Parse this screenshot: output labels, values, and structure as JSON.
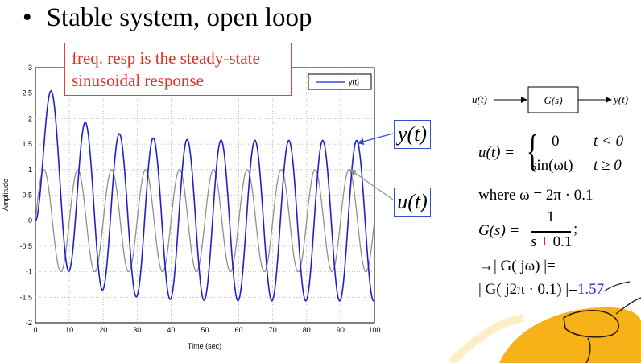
{
  "slide": {
    "bullet": "•",
    "title": "Stable system, open loop",
    "callout_line1": "freq. resp is the steady-state",
    "callout_line2": "sinusoidal response"
  },
  "chart_data": {
    "type": "line",
    "xlabel": "Time (sec)",
    "ylabel": "Amplitude",
    "xlim": [
      0,
      100
    ],
    "ylim": [
      -2,
      3
    ],
    "xticks": [
      0,
      10,
      20,
      30,
      40,
      50,
      60,
      70,
      80,
      90,
      100
    ],
    "yticks": [
      -2,
      -1.5,
      -1,
      -0.5,
      0,
      0.5,
      1,
      1.5,
      2,
      2.5,
      3
    ],
    "grid": true,
    "legend": {
      "position": "top-right",
      "entries": [
        "y(t)"
      ]
    },
    "series": [
      {
        "name": "y(t)",
        "color": "#1f1fd0",
        "description_formula": "y = A sin(2π·0.1 t − φ) + B e^(−0.1 t)",
        "amplitude": 1.57,
        "frequency_hz": 0.1,
        "x_range": [
          0,
          100
        ]
      },
      {
        "name": "u(t)",
        "color": "#909090",
        "description_formula": "u = sin(2π·0.1 t)",
        "amplitude": 1,
        "frequency_hz": 0.1,
        "x_range": [
          0,
          100
        ]
      }
    ]
  },
  "labels": {
    "y_box": "y(t)",
    "u_box": "u(t)"
  },
  "diagram": {
    "input": "u(t)",
    "block": "G(s)",
    "output": "y(t)"
  },
  "equations": {
    "u_lhs": "u(t) =",
    "case1_val": "0",
    "case1_cond": "t < 0",
    "case2_val": "sin(ωt)",
    "case2_cond": "t ≥ 0",
    "where": "where ω = 2π · 0.1",
    "g_lhs": "G(s) =",
    "g_num": "1",
    "g_den_s": "s",
    "g_den_plus": "+",
    "g_den_c": "0.1",
    "g_tail": ";",
    "mag_line1": "→| G( jω) |=",
    "mag_line2": "| G( j2π · 0.1) |=",
    "mag_value": "1.57"
  },
  "colors": {
    "callout_border": "#e84040",
    "callout_text": "#e03020",
    "box_border": "#3050c8",
    "highlight_blue": "#2030e0",
    "highlight_red": "#e02020"
  }
}
